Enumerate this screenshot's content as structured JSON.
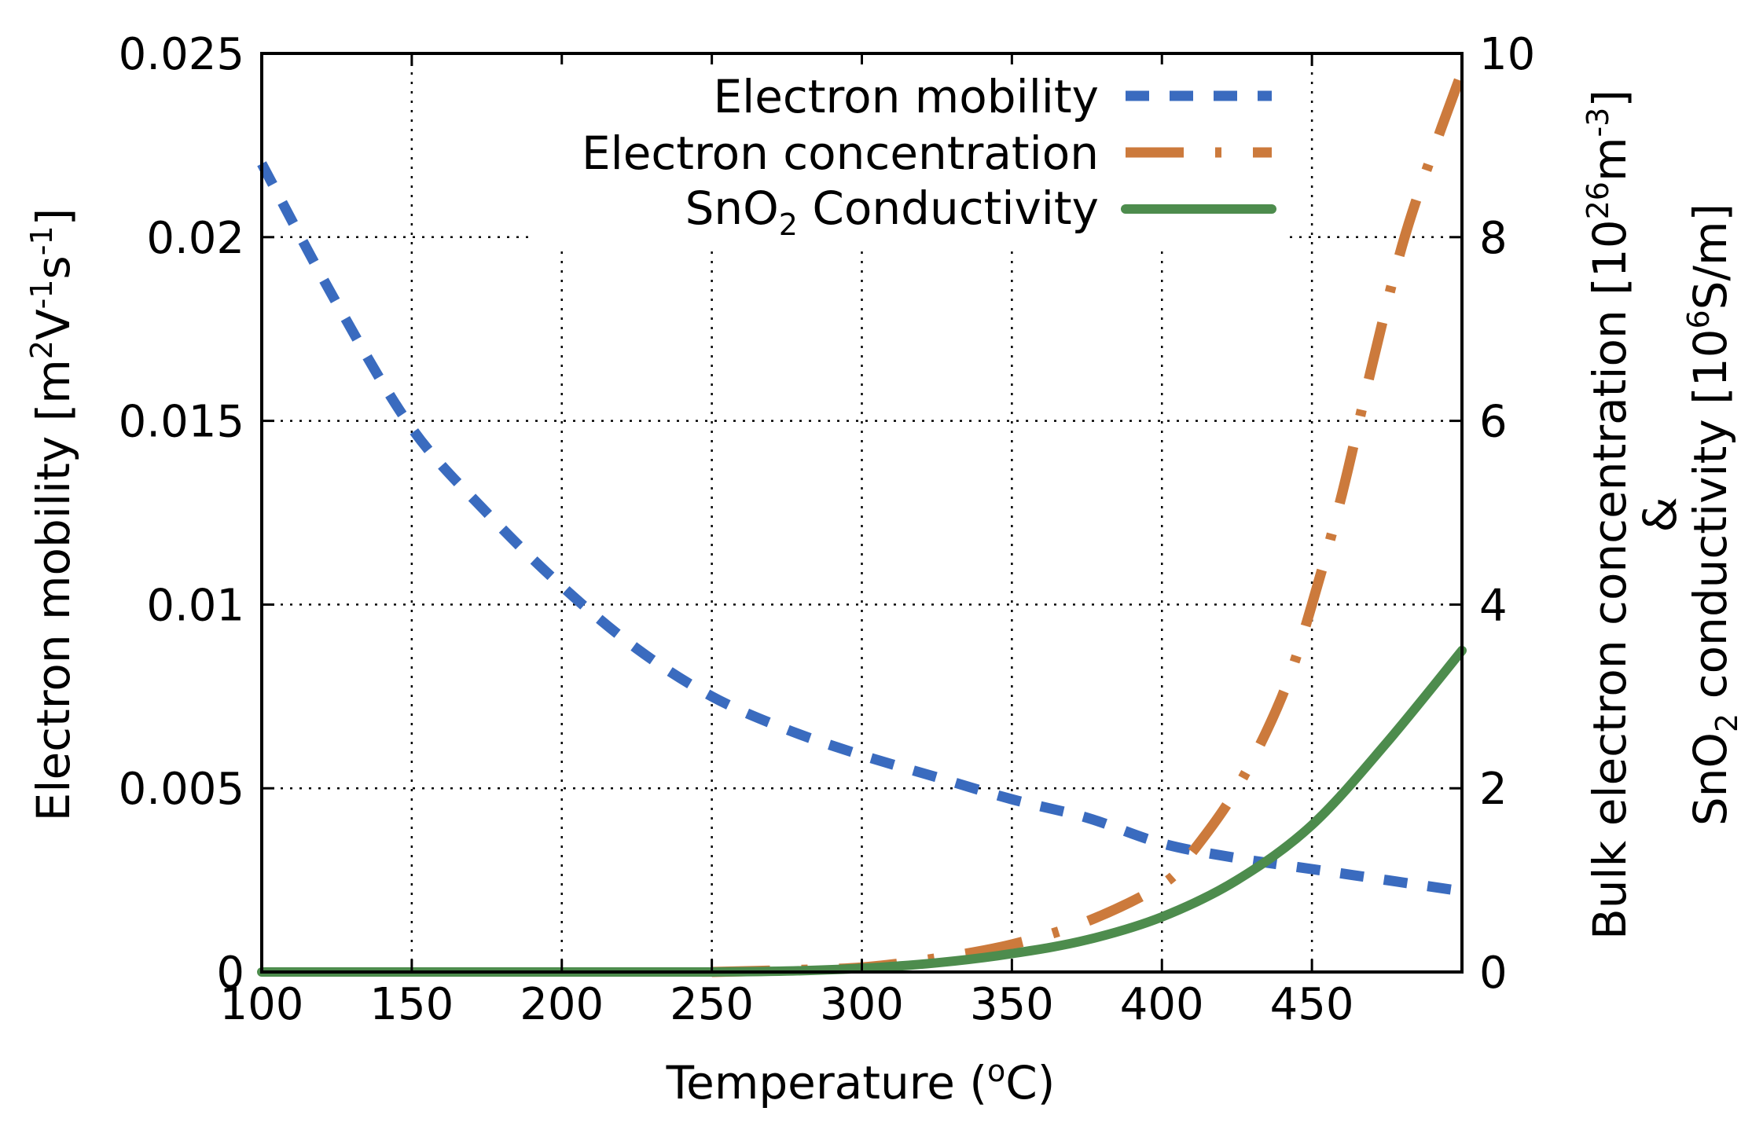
{
  "chart_data": {
    "type": "line",
    "title": "",
    "xlabel": "Temperature (°C)",
    "xlabel_parts": {
      "pre": "Temperature (",
      "sup": "o",
      "post": "C)"
    },
    "ylabel_left": "Electron mobility [m²V⁻¹s⁻¹]",
    "ylabel_left_parts": {
      "a": "Electron mobility [m",
      "sup1": "2",
      "b": "V",
      "sup2": "-1",
      "c": "s",
      "sup3": "-1",
      "d": "]"
    },
    "ylabel_right": "Bulk electron concentration [10²⁶m⁻³] & SnO₂ conductivity [10⁶S/m]",
    "ylabel_right_line1_parts": {
      "a": "Bulk electron concentration [10",
      "sup1": "26",
      "b": "m",
      "sup2": "-3",
      "c": "]"
    },
    "ylabel_right_amp": "&",
    "ylabel_right_line2_parts": {
      "a": "SnO",
      "sub": "2",
      "b": " conductivity [10",
      "sup": "6",
      "c": "S/m]"
    },
    "xlim": [
      100,
      500
    ],
    "ylim_left": [
      0,
      0.025
    ],
    "ylim_right": [
      0,
      10
    ],
    "grid": true,
    "legend_position": "top-right",
    "x_ticks": [
      100,
      150,
      200,
      250,
      300,
      350,
      400,
      450
    ],
    "y_left_ticks": [
      0,
      0.005,
      0.01,
      0.015,
      0.02,
      0.025
    ],
    "y_left_tick_labels": [
      "0",
      "0.005",
      "0.01",
      "0.015",
      "0.02",
      "0.025"
    ],
    "y_right_ticks": [
      0,
      2,
      4,
      6,
      8,
      10
    ],
    "y_right_tick_labels": [
      "0",
      "2",
      "4",
      "6",
      "8",
      "10"
    ],
    "series": [
      {
        "name": "Electron mobility",
        "legend_parts": {
          "a": "Electron mobility"
        },
        "axis": "left",
        "color": "#3a6bbf",
        "style": "dashed",
        "x": [
          100,
          125,
          150,
          175,
          200,
          225,
          250,
          275,
          300,
          325,
          350,
          375,
          400,
          425,
          450,
          475,
          500
        ],
        "y": [
          0.022,
          0.0182,
          0.0148,
          0.0125,
          0.0105,
          0.0088,
          0.0075,
          0.0066,
          0.0059,
          0.0053,
          0.0047,
          0.0042,
          0.0035,
          0.0031,
          0.0028,
          0.0025,
          0.0022
        ]
      },
      {
        "name": "Electron concentration",
        "legend_parts": {
          "a": "Electron concentration"
        },
        "axis": "right",
        "color": "#cc7a3c",
        "style": "dashdot",
        "x": [
          250,
          275,
          300,
          325,
          350,
          375,
          400,
          410,
          425,
          440,
          450,
          460,
          470,
          480,
          490,
          500
        ],
        "y": [
          0,
          0.02,
          0.05,
          0.15,
          0.3,
          0.55,
          0.95,
          1.3,
          2.0,
          3.0,
          4.0,
          5.2,
          6.6,
          7.9,
          8.9,
          9.8
        ]
      },
      {
        "name": "SnO2 Conductivity",
        "legend_parts": {
          "a": "SnO",
          "sub": "2",
          "b": " Conductivity"
        },
        "axis": "right",
        "color": "#4d8c4d",
        "style": "solid",
        "x": [
          100,
          150,
          200,
          250,
          275,
          300,
          325,
          350,
          375,
          400,
          425,
          450,
          475,
          500
        ],
        "y": [
          0,
          0,
          0,
          0,
          0.01,
          0.04,
          0.1,
          0.2,
          0.35,
          0.6,
          1.0,
          1.6,
          2.5,
          3.5
        ]
      }
    ]
  },
  "colors": {
    "background": "#ffffff",
    "axis": "#000000",
    "mobility": "#3a6bbf",
    "concentration": "#cc7a3c",
    "conductivity": "#4d8c4d"
  }
}
